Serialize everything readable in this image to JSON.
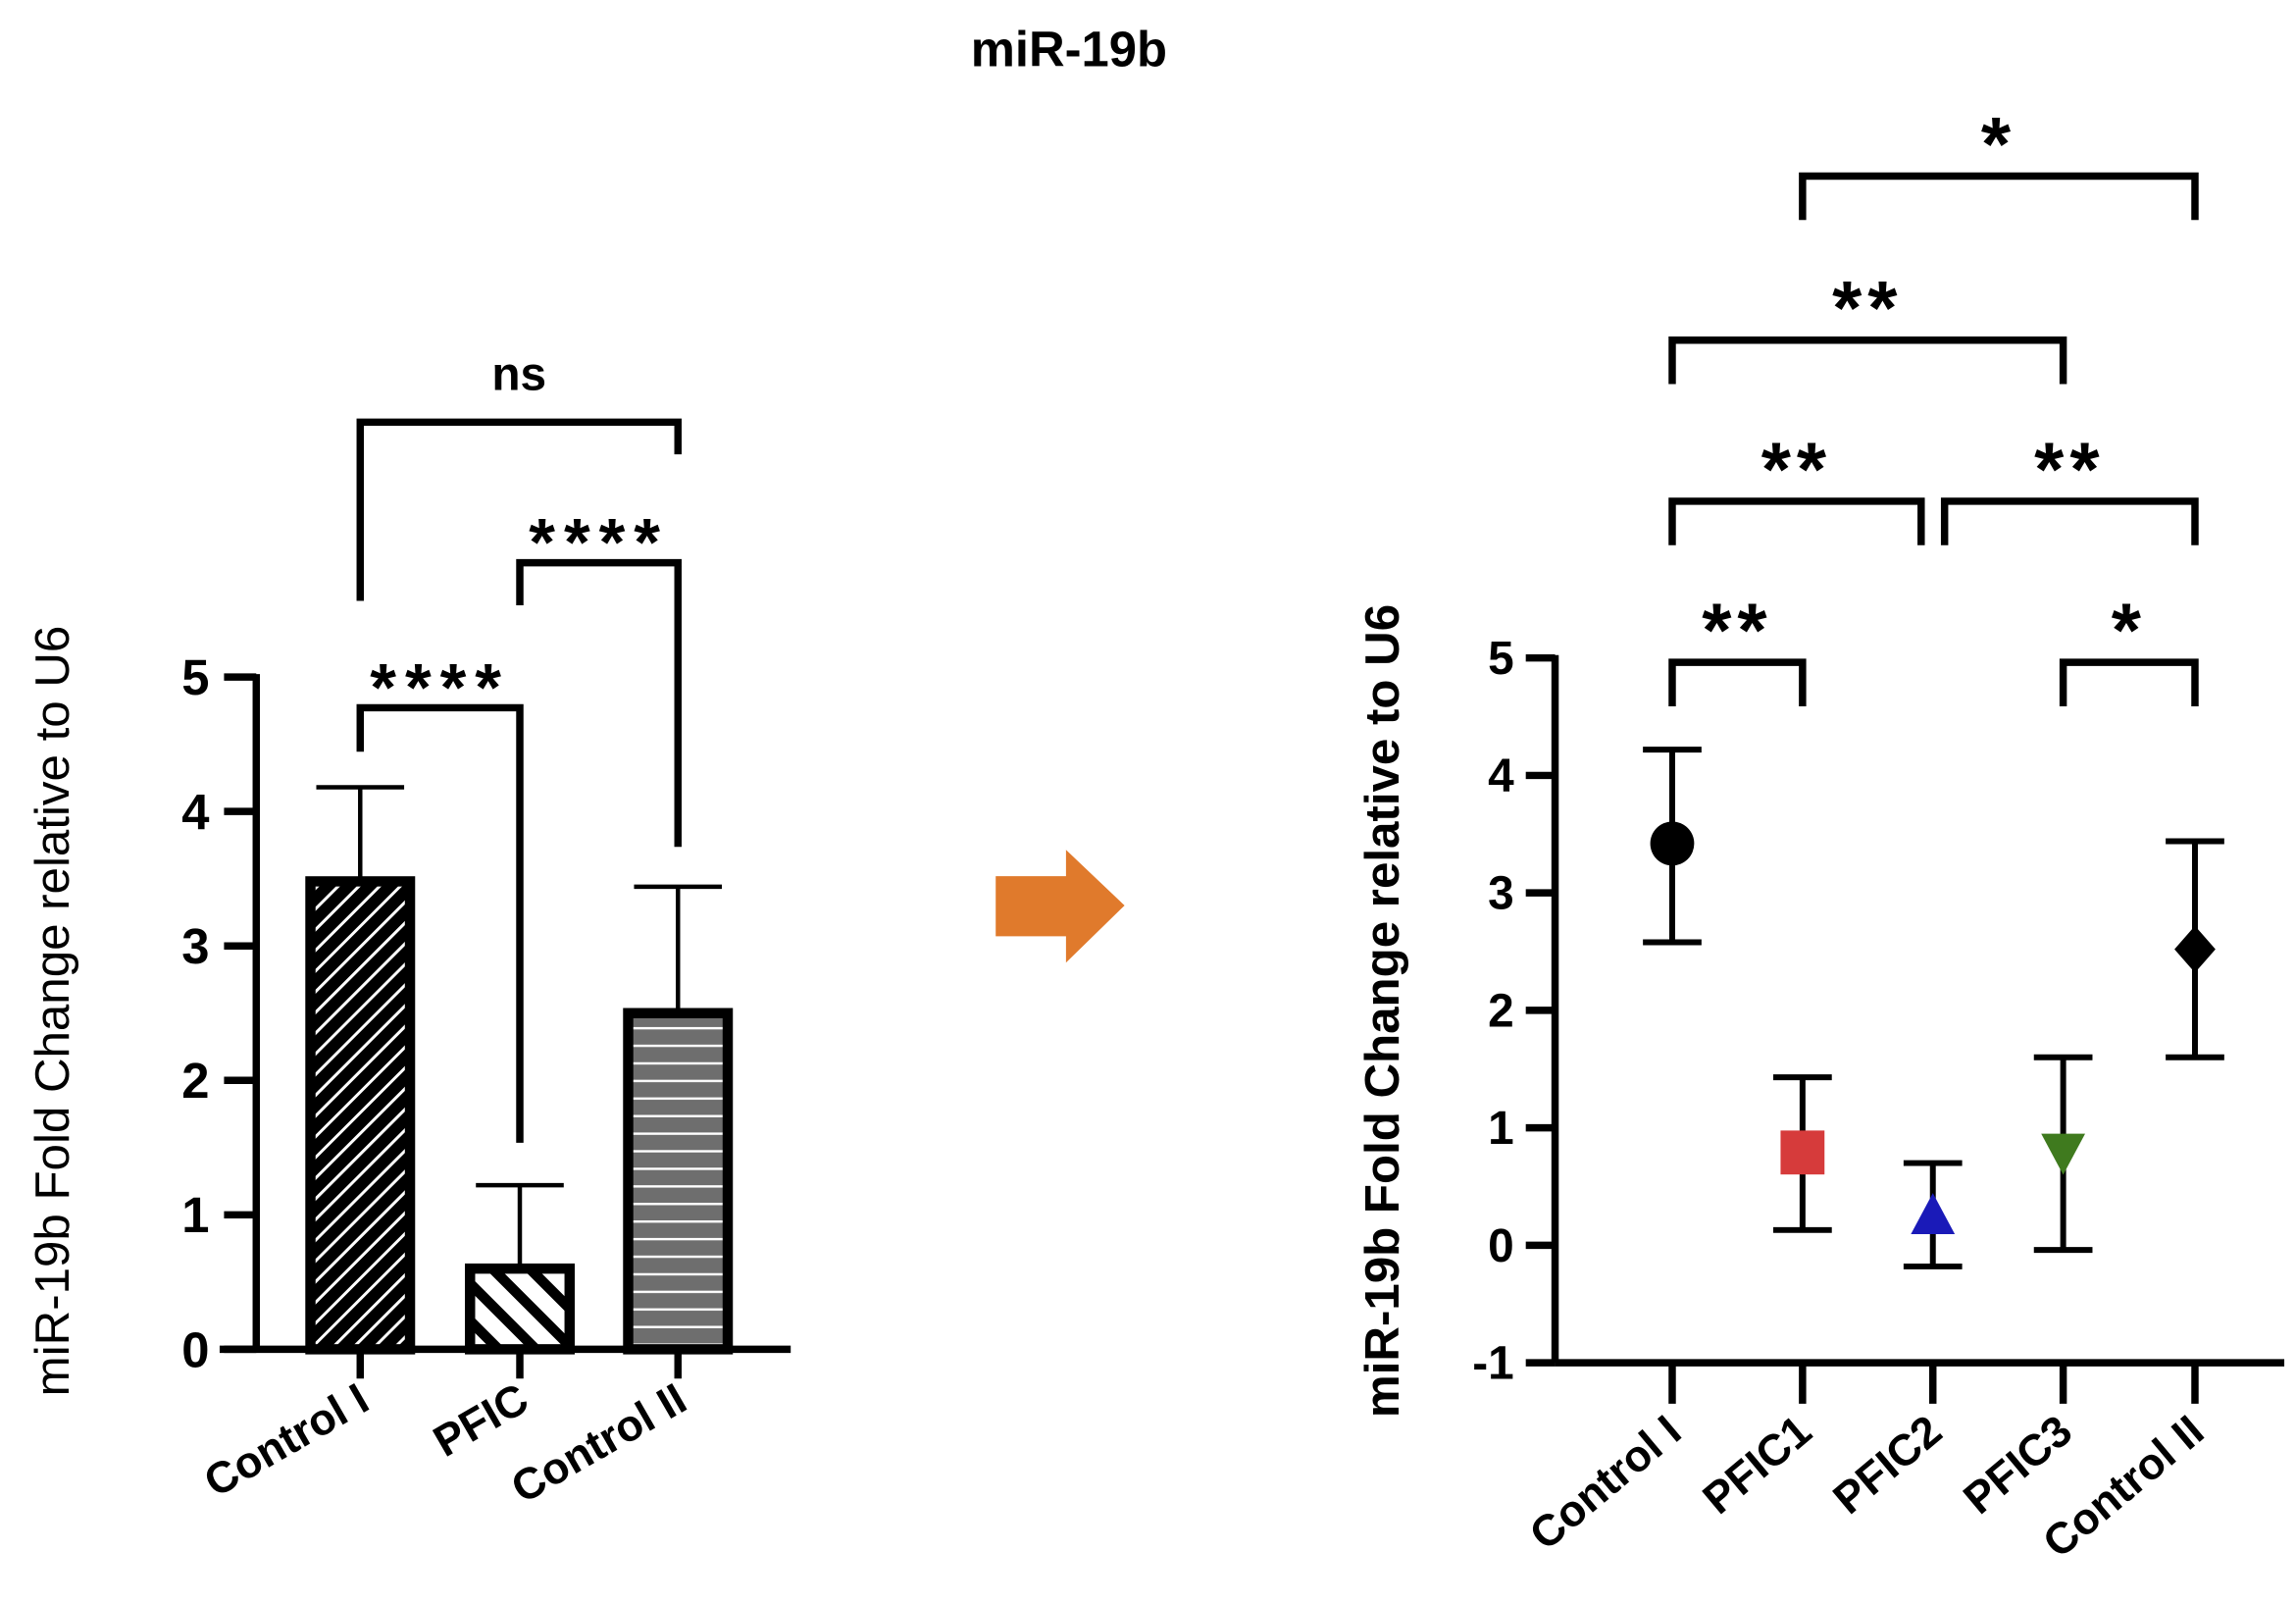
{
  "title": "miR-19b",
  "colors": {
    "arrow": "#e07a2c",
    "pfic1": "#d63b3b",
    "pfic2": "#1a1ab8",
    "pfic3": "#3f7a1e",
    "control": "#000000",
    "control2_fill": "#6e6e6e"
  },
  "chart_data": [
    {
      "type": "bar",
      "ylabel": "miR-19b Fold Change relative to U6",
      "categories": [
        "Control I",
        "PFIC",
        "Control II"
      ],
      "values": [
        3.48,
        0.6,
        2.5
      ],
      "error_upper": [
        4.18,
        1.22,
        3.44
      ],
      "patterns": [
        "diagonal-forward-fine",
        "diagonal-back-wide",
        "horizontal-lines-gray"
      ],
      "ylim": [
        0,
        5
      ],
      "yticks": [
        "0",
        "1",
        "2",
        "3",
        "4",
        "5"
      ],
      "grid": false,
      "significance": [
        {
          "from": "Control I",
          "to": "PFIC",
          "label": "****"
        },
        {
          "from": "PFIC",
          "to": "Control II",
          "label": "****"
        },
        {
          "from": "Control I",
          "to": "Control II",
          "label": "ns"
        }
      ]
    },
    {
      "type": "scatter",
      "ylabel": "miR-19b Fold Change relative to U6",
      "categories": [
        "Control I",
        "PFIC1",
        "PFIC2",
        "PFIC3",
        "Control II"
      ],
      "values": [
        3.42,
        0.79,
        0.22,
        0.8,
        2.52
      ],
      "error_upper": [
        4.22,
        1.43,
        0.7,
        1.6,
        3.44
      ],
      "error_lower": [
        2.58,
        0.13,
        -0.18,
        -0.04,
        1.6
      ],
      "markers": [
        "circle",
        "square",
        "triangle-up",
        "triangle-down",
        "diamond"
      ],
      "ylim": [
        -1,
        5
      ],
      "yticks": [
        "-1",
        "0",
        "1",
        "2",
        "3",
        "4",
        "5"
      ],
      "grid": false,
      "significance": [
        {
          "from": "Control I",
          "to": "PFIC1",
          "label": "**"
        },
        {
          "from": "PFIC3",
          "to": "Control II",
          "label": "*"
        },
        {
          "from": "Control I",
          "to": "PFIC2",
          "label": "**"
        },
        {
          "from": "PFIC2",
          "to": "Control II",
          "label": "**"
        },
        {
          "from": "Control I",
          "to": "PFIC3",
          "label": "**"
        },
        {
          "from": "PFIC1",
          "to": "Control II",
          "label": "*"
        }
      ]
    }
  ],
  "arrow_icon": "right-arrow-icon"
}
